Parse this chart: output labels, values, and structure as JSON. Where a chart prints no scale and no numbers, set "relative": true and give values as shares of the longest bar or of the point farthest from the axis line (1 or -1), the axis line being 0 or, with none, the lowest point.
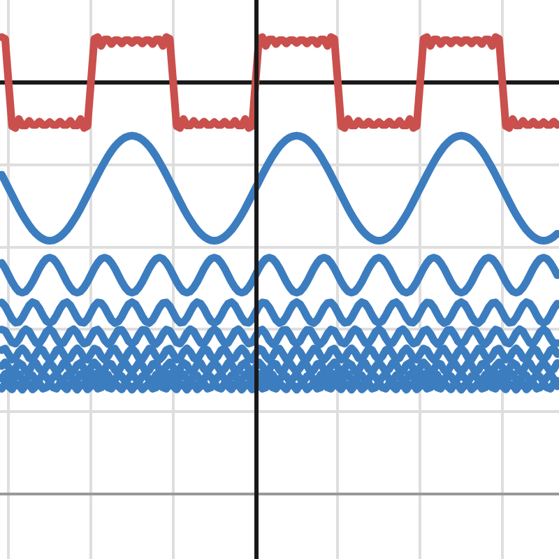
{
  "chart_data": {
    "type": "line",
    "relative": true,
    "grid": true,
    "categories": [
      null,
      null,
      null,
      null,
      null,
      null,
      null,
      null,
      null,
      null,
      null,
      null,
      null,
      null,
      null,
      null,
      null,
      null,
      null,
      null,
      null,
      null,
      null,
      null,
      null,
      null,
      null,
      null,
      null,
      null,
      null,
      null,
      null,
      null,
      null,
      null,
      null,
      null,
      null,
      null,
      null,
      null,
      null,
      null,
      null,
      null,
      null,
      null,
      null,
      null,
      null,
      null,
      null,
      null,
      null,
      null,
      null,
      null,
      null,
      null,
      null,
      null,
      null,
      null,
      null,
      null,
      null,
      null,
      null,
      null,
      null,
      null,
      null,
      null,
      null,
      null,
      null,
      null,
      null,
      null,
      null,
      null,
      null,
      null,
      null,
      null,
      null,
      null,
      null,
      null,
      null,
      null,
      null,
      null,
      null,
      null,
      null,
      null,
      null,
      null,
      null,
      null,
      null,
      null,
      null,
      null,
      null,
      null,
      null,
      null,
      null,
      null,
      null,
      null,
      null,
      null,
      null,
      null,
      null,
      null,
      null,
      null,
      null,
      null,
      null,
      null,
      null,
      null,
      null,
      null,
      null,
      null,
      null,
      null,
      null,
      null,
      null,
      null,
      null,
      null,
      null,
      null,
      null,
      null,
      null,
      null,
      null,
      null,
      null,
      null,
      null,
      null,
      null,
      null,
      null,
      null,
      null,
      null,
      null,
      null,
      null,
      null,
      null
    ],
    "series": [
      {
        "color": "#c9504d",
        "values": [
          0.148,
          0.142,
          0,
          -0.142,
          -0.148,
          -0.119,
          -0.14,
          -0.14,
          -0.125,
          -0.138,
          -0.138,
          -0.127,
          -0.138,
          -0.138,
          -0.129,
          -0.138,
          -0.138,
          -0.127,
          -0.138,
          -0.138,
          -0.125,
          -0.14,
          -0.14,
          -0.119,
          -0.148,
          -0.142,
          0,
          0.142,
          0.148,
          0.119,
          0.14,
          0.14,
          0.125,
          0.138,
          0.138,
          0.127,
          0.138,
          0.138,
          0.129,
          0.138,
          0.138,
          0.127,
          0.138,
          0.138,
          0.125,
          0.14,
          0.14,
          0.119,
          0.148,
          0.142,
          0,
          -0.142,
          -0.148,
          -0.119,
          -0.14,
          -0.14,
          -0.125,
          -0.138,
          -0.138,
          -0.127,
          -0.138,
          -0.138,
          -0.129,
          -0.138,
          -0.138,
          -0.127,
          -0.138,
          -0.138,
          -0.125,
          -0.14,
          -0.14,
          -0.119,
          -0.148,
          -0.142,
          0,
          0.142,
          0.148,
          0.119,
          0.14,
          0.14,
          0.125,
          0.138,
          0.138,
          0.127,
          0.138,
          0.138,
          0.129,
          0.138,
          0.138,
          0.127,
          0.138,
          0.138,
          0.125,
          0.14,
          0.14,
          0.119,
          0.148,
          0.142,
          0,
          -0.142,
          -0.148,
          -0.119,
          -0.14,
          -0.14,
          -0.125,
          -0.138,
          -0.138,
          -0.127,
          -0.138,
          -0.138,
          -0.129,
          -0.138,
          -0.138,
          -0.127,
          -0.138,
          -0.138,
          -0.125,
          -0.14,
          -0.14,
          -0.119,
          -0.148,
          -0.142,
          0,
          0.142,
          0.148,
          0.119,
          0.14,
          0.14,
          0.125,
          0.138,
          0.138,
          0.127,
          0.138,
          0.138,
          0.129,
          0.138,
          0.138,
          0.127,
          0.138,
          0.138,
          0.125,
          0.14,
          0.14,
          0.119,
          0.148,
          0.142,
          0,
          -0.142,
          -0.148,
          -0.119,
          -0.14,
          -0.14,
          -0.125,
          -0.138,
          -0.138,
          -0.127,
          -0.138,
          -0.138,
          -0.129,
          -0.138,
          -0.138,
          -0.127,
          -0.138
        ]
      },
      {
        "color": "#3c7dbf",
        "values": [
          -0.3,
          -0.322,
          -0.344,
          -0.366,
          -0.388,
          -0.41,
          -0.43,
          -0.448,
          -0.465,
          -0.48,
          -0.492,
          -0.502,
          -0.509,
          -0.514,
          -0.515,
          -0.514,
          -0.509,
          -0.502,
          -0.492,
          -0.48,
          -0.465,
          -0.448,
          -0.43,
          -0.41,
          -0.388,
          -0.366,
          -0.344,
          -0.322,
          -0.3,
          -0.279,
          -0.259,
          -0.24,
          -0.223,
          -0.208,
          -0.196,
          -0.186,
          -0.179,
          -0.175,
          -0.173,
          -0.175,
          -0.179,
          -0.186,
          -0.196,
          -0.208,
          -0.223,
          -0.24,
          -0.259,
          -0.279,
          -0.3,
          -0.322,
          -0.344,
          -0.366,
          -0.388,
          -0.41,
          -0.43,
          -0.448,
          -0.465,
          -0.48,
          -0.492,
          -0.502,
          -0.509,
          -0.514,
          -0.515,
          -0.514,
          -0.509,
          -0.502,
          -0.492,
          -0.48,
          -0.465,
          -0.448,
          -0.43,
          -0.41,
          -0.388,
          -0.366,
          -0.344,
          -0.322,
          -0.3,
          -0.279,
          -0.259,
          -0.24,
          -0.223,
          -0.208,
          -0.196,
          -0.186,
          -0.179,
          -0.175,
          -0.173,
          -0.175,
          -0.179,
          -0.186,
          -0.196,
          -0.208,
          -0.223,
          -0.24,
          -0.259,
          -0.279,
          -0.3,
          -0.322,
          -0.344,
          -0.366,
          -0.388,
          -0.41,
          -0.43,
          -0.448,
          -0.465,
          -0.48,
          -0.492,
          -0.502,
          -0.509,
          -0.514,
          -0.515,
          -0.514,
          -0.509,
          -0.502,
          -0.492,
          -0.48,
          -0.465,
          -0.448,
          -0.43,
          -0.41,
          -0.388,
          -0.366,
          -0.344,
          -0.322,
          -0.3,
          -0.279,
          -0.259,
          -0.24,
          -0.223,
          -0.208,
          -0.196,
          -0.186,
          -0.179,
          -0.175,
          -0.173,
          -0.175,
          -0.179,
          -0.186,
          -0.196,
          -0.208,
          -0.223,
          -0.24,
          -0.259,
          -0.279,
          -0.3,
          -0.322,
          -0.344,
          -0.366,
          -0.388,
          -0.41,
          -0.43,
          -0.448,
          -0.465,
          -0.48,
          -0.492,
          -0.502,
          -0.509,
          -0.514,
          -0.515,
          -0.514,
          -0.509,
          -0.502,
          -0.492
        ]
      },
      {
        "color": "#3c7dbf",
        "values": [
          -0.587,
          -0.605,
          -0.627,
          -0.649,
          -0.667,
          -0.68,
          -0.684,
          -0.68,
          -0.667,
          -0.649,
          -0.627,
          -0.605,
          -0.587,
          -0.574,
          -0.57,
          -0.574,
          -0.587,
          -0.605,
          -0.627,
          -0.649,
          -0.667,
          -0.68,
          -0.684,
          -0.68,
          -0.667,
          -0.649,
          -0.627,
          -0.605,
          -0.587,
          -0.574,
          -0.57,
          -0.574,
          -0.587,
          -0.605,
          -0.627,
          -0.649,
          -0.667,
          -0.68,
          -0.684,
          -0.68,
          -0.667,
          -0.649,
          -0.627,
          -0.605,
          -0.587,
          -0.574,
          -0.57,
          -0.574,
          -0.587,
          -0.605,
          -0.627,
          -0.649,
          -0.667,
          -0.68,
          -0.684,
          -0.68,
          -0.667,
          -0.649,
          -0.627,
          -0.605,
          -0.587,
          -0.574,
          -0.57,
          -0.574,
          -0.587,
          -0.605,
          -0.627,
          -0.649,
          -0.667,
          -0.68,
          -0.684,
          -0.68,
          -0.667,
          -0.649,
          -0.627,
          -0.605,
          -0.587,
          -0.574,
          -0.57,
          -0.574,
          -0.587,
          -0.605,
          -0.627,
          -0.649,
          -0.667,
          -0.68,
          -0.684,
          -0.68,
          -0.667,
          -0.649,
          -0.627,
          -0.605,
          -0.587,
          -0.574,
          -0.57,
          -0.574,
          -0.587,
          -0.605,
          -0.627,
          -0.649,
          -0.667,
          -0.68,
          -0.684,
          -0.68,
          -0.667,
          -0.649,
          -0.627,
          -0.605,
          -0.587,
          -0.574,
          -0.57,
          -0.574,
          -0.587,
          -0.605,
          -0.627,
          -0.649,
          -0.667,
          -0.68,
          -0.684,
          -0.68,
          -0.667,
          -0.649,
          -0.627,
          -0.605,
          -0.587,
          -0.574,
          -0.57,
          -0.574,
          -0.587,
          -0.605,
          -0.627,
          -0.649,
          -0.667,
          -0.68,
          -0.684,
          -0.68,
          -0.667,
          -0.649,
          -0.627,
          -0.605,
          -0.587,
          -0.574,
          -0.57,
          -0.574,
          -0.587,
          -0.605,
          -0.627,
          -0.649,
          -0.667,
          -0.68,
          -0.684,
          -0.68,
          -0.667,
          -0.649,
          -0.627,
          -0.605,
          -0.587,
          -0.574,
          -0.57,
          -0.574,
          -0.587,
          -0.605,
          -0.627
        ]
      },
      {
        "color": "#3c7dbf",
        "values": [
          -0.716,
          -0.728,
          -0.749,
          -0.77,
          -0.782,
          -0.78,
          -0.766,
          -0.745,
          -0.725,
          -0.715,
          -0.72,
          -0.736,
          -0.758,
          -0.776,
          -0.783,
          -0.776,
          -0.758,
          -0.736,
          -0.72,
          -0.715,
          -0.725,
          -0.745,
          -0.766,
          -0.78,
          -0.782,
          -0.77,
          -0.749,
          -0.728,
          -0.716,
          -0.718,
          -0.732,
          -0.753,
          -0.773,
          -0.783,
          -0.778,
          -0.762,
          -0.74,
          -0.722,
          -0.715,
          -0.722,
          -0.74,
          -0.762,
          -0.778,
          -0.783,
          -0.773,
          -0.753,
          -0.732,
          -0.718,
          -0.716,
          -0.728,
          -0.749,
          -0.77,
          -0.782,
          -0.78,
          -0.766,
          -0.745,
          -0.725,
          -0.715,
          -0.72,
          -0.736,
          -0.758,
          -0.776,
          -0.783,
          -0.776,
          -0.758,
          -0.736,
          -0.72,
          -0.715,
          -0.725,
          -0.745,
          -0.766,
          -0.78,
          -0.782,
          -0.77,
          -0.749,
          -0.728,
          -0.716,
          -0.718,
          -0.732,
          -0.753,
          -0.773,
          -0.783,
          -0.778,
          -0.762,
          -0.74,
          -0.722,
          -0.715,
          -0.722,
          -0.74,
          -0.762,
          -0.778,
          -0.783,
          -0.773,
          -0.753,
          -0.732,
          -0.718,
          -0.716,
          -0.728,
          -0.749,
          -0.77,
          -0.782,
          -0.78,
          -0.766,
          -0.745,
          -0.725,
          -0.715,
          -0.72,
          -0.736,
          -0.758,
          -0.776,
          -0.783,
          -0.776,
          -0.758,
          -0.736,
          -0.72,
          -0.715,
          -0.725,
          -0.745,
          -0.766,
          -0.78,
          -0.782,
          -0.77,
          -0.749,
          -0.728,
          -0.716,
          -0.718,
          -0.732,
          -0.753,
          -0.773,
          -0.783,
          -0.778,
          -0.762,
          -0.74,
          -0.722,
          -0.715,
          -0.722,
          -0.74,
          -0.762,
          -0.778,
          -0.783,
          -0.773,
          -0.753,
          -0.732,
          -0.718,
          -0.716,
          -0.728,
          -0.749,
          -0.77,
          -0.782,
          -0.78,
          -0.766,
          -0.745,
          -0.725,
          -0.715,
          -0.72,
          -0.736,
          -0.758,
          -0.776,
          -0.783,
          -0.776,
          -0.758,
          -0.736,
          -0.72
        ]
      },
      {
        "color": "#3c7dbf",
        "values": [
          -0.804,
          -0.808,
          -0.827,
          -0.846,
          -0.85,
          -0.836,
          -0.815,
          -0.803,
          -0.81,
          -0.83,
          -0.848,
          -0.849,
          -0.833,
          -0.812,
          -0.803,
          -0.812,
          -0.833,
          -0.849,
          -0.848,
          -0.83,
          -0.81,
          -0.803,
          -0.815,
          -0.836,
          -0.85,
          -0.846,
          -0.827,
          -0.808,
          -0.804,
          -0.818,
          -0.839,
          -0.851,
          -0.844,
          -0.824,
          -0.806,
          -0.805,
          -0.821,
          -0.842,
          -0.851,
          -0.842,
          -0.821,
          -0.805,
          -0.806,
          -0.824,
          -0.844,
          -0.851,
          -0.839,
          -0.818,
          -0.804,
          -0.808,
          -0.827,
          -0.846,
          -0.85,
          -0.836,
          -0.815,
          -0.803,
          -0.81,
          -0.83,
          -0.848,
          -0.849,
          -0.833,
          -0.812,
          -0.803,
          -0.812,
          -0.833,
          -0.849,
          -0.848,
          -0.83,
          -0.81,
          -0.803,
          -0.815,
          -0.836,
          -0.85,
          -0.846,
          -0.827,
          -0.808,
          -0.804,
          -0.818,
          -0.839,
          -0.851,
          -0.844,
          -0.824,
          -0.806,
          -0.805,
          -0.821,
          -0.842,
          -0.851,
          -0.842,
          -0.821,
          -0.805,
          -0.806,
          -0.824,
          -0.844,
          -0.851,
          -0.839,
          -0.818,
          -0.804,
          -0.808,
          -0.827,
          -0.846,
          -0.85,
          -0.836,
          -0.815,
          -0.803,
          -0.81,
          -0.83,
          -0.848,
          -0.849,
          -0.833,
          -0.812,
          -0.803,
          -0.812,
          -0.833,
          -0.849,
          -0.848,
          -0.83,
          -0.81,
          -0.803,
          -0.815,
          -0.836,
          -0.85,
          -0.846,
          -0.827,
          -0.808,
          -0.804,
          -0.818,
          -0.839,
          -0.851,
          -0.844,
          -0.824,
          -0.806,
          -0.805,
          -0.821,
          -0.842,
          -0.851,
          -0.842,
          -0.821,
          -0.805,
          -0.806,
          -0.824,
          -0.844,
          -0.851,
          -0.839,
          -0.818,
          -0.804,
          -0.808,
          -0.827,
          -0.846,
          -0.85,
          -0.836,
          -0.815,
          -0.803,
          -0.81,
          -0.83,
          -0.848,
          -0.849,
          -0.833,
          -0.812,
          -0.803,
          -0.812,
          -0.833,
          -0.849,
          -0.848
        ]
      },
      {
        "color": "#3c7dbf",
        "values": [
          -0.871,
          -0.866,
          -0.884,
          -0.902,
          -0.897,
          -0.877,
          -0.865,
          -0.877,
          -0.897,
          -0.902,
          -0.884,
          -0.866,
          -0.871,
          -0.891,
          -0.903,
          -0.891,
          -0.871,
          -0.866,
          -0.884,
          -0.902,
          -0.897,
          -0.877,
          -0.865,
          -0.877,
          -0.897,
          -0.902,
          -0.884,
          -0.866,
          -0.871,
          -0.891,
          -0.903,
          -0.891,
          -0.871,
          -0.866,
          -0.884,
          -0.902,
          -0.897,
          -0.877,
          -0.865,
          -0.877,
          -0.897,
          -0.902,
          -0.884,
          -0.866,
          -0.871,
          -0.891,
          -0.903,
          -0.891,
          -0.871,
          -0.866,
          -0.884,
          -0.902,
          -0.897,
          -0.877,
          -0.865,
          -0.877,
          -0.897,
          -0.902,
          -0.884,
          -0.866,
          -0.871,
          -0.891,
          -0.903,
          -0.891,
          -0.871,
          -0.866,
          -0.884,
          -0.902,
          -0.897,
          -0.877,
          -0.865,
          -0.877,
          -0.897,
          -0.902,
          -0.884,
          -0.866,
          -0.871,
          -0.891,
          -0.903,
          -0.891,
          -0.871,
          -0.866,
          -0.884,
          -0.902,
          -0.897,
          -0.877,
          -0.865,
          -0.877,
          -0.897,
          -0.902,
          -0.884,
          -0.866,
          -0.871,
          -0.891,
          -0.903,
          -0.891,
          -0.871,
          -0.866,
          -0.884,
          -0.902,
          -0.897,
          -0.877,
          -0.865,
          -0.877,
          -0.897,
          -0.902,
          -0.884,
          -0.866,
          -0.871,
          -0.891,
          -0.903,
          -0.891,
          -0.871,
          -0.866,
          -0.884,
          -0.902,
          -0.897,
          -0.877,
          -0.865,
          -0.877,
          -0.897,
          -0.902,
          -0.884,
          -0.866,
          -0.871,
          -0.891,
          -0.903,
          -0.891,
          -0.871,
          -0.866,
          -0.884,
          -0.902,
          -0.897,
          -0.877,
          -0.865,
          -0.877,
          -0.897,
          -0.902,
          -0.884,
          -0.866,
          -0.871,
          -0.891,
          -0.903,
          -0.891,
          -0.871,
          -0.866,
          -0.884,
          -0.902,
          -0.897,
          -0.877,
          -0.865,
          -0.877,
          -0.897,
          -0.902,
          -0.884,
          -0.866,
          -0.871,
          -0.891,
          -0.903,
          -0.891,
          -0.871,
          -0.866,
          -0.884
        ]
      },
      {
        "color": "#3c7dbf",
        "values": [
          -0.923,
          -0.911,
          -0.927,
          -0.943,
          -0.931,
          -0.912,
          -0.919,
          -0.94,
          -0.938,
          -0.917,
          -0.913,
          -0.933,
          -0.942,
          -0.925,
          -0.911,
          -0.925,
          -0.942,
          -0.933,
          -0.913,
          -0.917,
          -0.938,
          -0.94,
          -0.919,
          -0.912,
          -0.931,
          -0.943,
          -0.927,
          -0.911,
          -0.923,
          -0.942,
          -0.935,
          -0.914,
          -0.916,
          -0.937,
          -0.941,
          -0.921,
          -0.912,
          -0.929,
          -0.943,
          -0.929,
          -0.912,
          -0.921,
          -0.941,
          -0.937,
          -0.916,
          -0.914,
          -0.935,
          -0.942,
          -0.923,
          -0.911,
          -0.927,
          -0.943,
          -0.931,
          -0.912,
          -0.919,
          -0.94,
          -0.938,
          -0.917,
          -0.913,
          -0.933,
          -0.942,
          -0.925,
          -0.911,
          -0.925,
          -0.942,
          -0.933,
          -0.913,
          -0.917,
          -0.938,
          -0.94,
          -0.919,
          -0.912,
          -0.931,
          -0.943,
          -0.927,
          -0.911,
          -0.923,
          -0.942,
          -0.935,
          -0.914,
          -0.916,
          -0.937,
          -0.941,
          -0.921,
          -0.912,
          -0.929,
          -0.943,
          -0.929,
          -0.912,
          -0.921,
          -0.941,
          -0.937,
          -0.916,
          -0.914,
          -0.935,
          -0.942,
          -0.923,
          -0.911,
          -0.927,
          -0.943,
          -0.931,
          -0.912,
          -0.919,
          -0.94,
          -0.938,
          -0.917,
          -0.913,
          -0.933,
          -0.942,
          -0.925,
          -0.911,
          -0.925,
          -0.942,
          -0.933,
          -0.913,
          -0.917,
          -0.938,
          -0.94,
          -0.919,
          -0.912,
          -0.931,
          -0.943,
          -0.927,
          -0.911,
          -0.923,
          -0.942,
          -0.935,
          -0.914,
          -0.916,
          -0.937,
          -0.941,
          -0.921,
          -0.912,
          -0.929,
          -0.943,
          -0.929,
          -0.912,
          -0.921,
          -0.941,
          -0.937,
          -0.916,
          -0.914,
          -0.935,
          -0.942,
          -0.923,
          -0.911,
          -0.927,
          -0.943,
          -0.931,
          -0.912,
          -0.919,
          -0.94,
          -0.938,
          -0.917,
          -0.913,
          -0.933,
          -0.942,
          -0.925,
          -0.911,
          -0.925,
          -0.942,
          -0.933,
          -0.913
        ]
      },
      {
        "color": "#3c7dbf",
        "values": [
          -0.964,
          -0.948,
          -0.961,
          -0.974,
          -0.958,
          -0.949,
          -0.967,
          -0.971,
          -0.952,
          -0.953,
          -0.972,
          -0.966,
          -0.948,
          -0.959,
          -0.974,
          -0.959,
          -0.948,
          -0.966,
          -0.972,
          -0.953,
          -0.952,
          -0.971,
          -0.967,
          -0.949,
          -0.958,
          -0.974,
          -0.961,
          -0.948,
          -0.964,
          -0.973,
          -0.955,
          -0.951,
          -0.97,
          -0.969,
          -0.95,
          -0.956,
          -0.974,
          -0.963,
          -0.948,
          -0.963,
          -0.974,
          -0.956,
          -0.95,
          -0.969,
          -0.97,
          -0.951,
          -0.955,
          -0.973,
          -0.964,
          -0.948,
          -0.961,
          -0.974,
          -0.958,
          -0.949,
          -0.967,
          -0.971,
          -0.952,
          -0.953,
          -0.972,
          -0.966,
          -0.948,
          -0.959,
          -0.974,
          -0.959,
          -0.948,
          -0.966,
          -0.972,
          -0.953,
          -0.952,
          -0.971,
          -0.967,
          -0.949,
          -0.958,
          -0.974,
          -0.961,
          -0.948,
          -0.964,
          -0.973,
          -0.955,
          -0.951,
          -0.97,
          -0.969,
          -0.95,
          -0.956,
          -0.974,
          -0.963,
          -0.948,
          -0.963,
          -0.974,
          -0.956,
          -0.95,
          -0.969,
          -0.97,
          -0.951,
          -0.955,
          -0.973,
          -0.964,
          -0.948,
          -0.961,
          -0.974,
          -0.958,
          -0.949,
          -0.967,
          -0.971,
          -0.952,
          -0.953,
          -0.972,
          -0.966,
          -0.948,
          -0.959,
          -0.974,
          -0.959,
          -0.948,
          -0.966,
          -0.972,
          -0.953,
          -0.952,
          -0.971,
          -0.967,
          -0.949,
          -0.958,
          -0.974,
          -0.961,
          -0.948,
          -0.964,
          -0.973,
          -0.955,
          -0.951,
          -0.97,
          -0.969,
          -0.95,
          -0.956,
          -0.974,
          -0.963,
          -0.948,
          -0.963,
          -0.974,
          -0.956,
          -0.95,
          -0.969,
          -0.97,
          -0.951,
          -0.955,
          -0.973,
          -0.964,
          -0.948,
          -0.961,
          -0.974,
          -0.958,
          -0.949,
          -0.967,
          -0.971,
          -0.952,
          -0.953,
          -0.972,
          -0.966,
          -0.948,
          -0.959,
          -0.974,
          -0.959,
          -0.948,
          -0.966,
          -0.972
        ]
      },
      {
        "color": "#3c7dbf",
        "values": [
          -0.997,
          -0.979,
          -0.989,
          -0.999,
          -0.981,
          -0.985,
          -1,
          -0.985,
          -0.981,
          -0.999,
          -0.989,
          -0.979,
          -0.997,
          -0.993,
          -0.978,
          -0.993,
          -0.997,
          -0.979,
          -0.989,
          -0.999,
          -0.981,
          -0.985,
          -1,
          -0.985,
          -0.981,
          -0.999,
          -0.989,
          -0.979,
          -0.997,
          -0.993,
          -0.978,
          -0.993,
          -0.997,
          -0.979,
          -0.989,
          -0.999,
          -0.981,
          -0.985,
          -1,
          -0.985,
          -0.981,
          -0.999,
          -0.989,
          -0.979,
          -0.997,
          -0.993,
          -0.978,
          -0.993,
          -0.997,
          -0.979,
          -0.989,
          -0.999,
          -0.981,
          -0.985,
          -1,
          -0.985,
          -0.981,
          -0.999,
          -0.989,
          -0.979,
          -0.997,
          -0.993,
          -0.978,
          -0.993,
          -0.997,
          -0.979,
          -0.989,
          -0.999,
          -0.981,
          -0.985,
          -1,
          -0.985,
          -0.981,
          -0.999,
          -0.989,
          -0.979,
          -0.997,
          -0.993,
          -0.978,
          -0.993,
          -0.997,
          -0.979,
          -0.989,
          -0.999,
          -0.981,
          -0.985,
          -1,
          -0.985,
          -0.981,
          -0.999,
          -0.989,
          -0.979,
          -0.997,
          -0.993,
          -0.978,
          -0.993,
          -0.997,
          -0.979,
          -0.989,
          -0.999,
          -0.981,
          -0.985,
          -1,
          -0.985,
          -0.981,
          -0.999,
          -0.989,
          -0.979,
          -0.997,
          -0.993,
          -0.978,
          -0.993,
          -0.997,
          -0.979,
          -0.989,
          -0.999,
          -0.981,
          -0.985,
          -1,
          -0.985,
          -0.981,
          -0.999,
          -0.989,
          -0.979,
          -0.997,
          -0.993,
          -0.978,
          -0.993,
          -0.997,
          -0.979,
          -0.989,
          -0.999,
          -0.981,
          -0.985,
          -1,
          -0.985,
          -0.981,
          -0.999,
          -0.989,
          -0.979,
          -0.997,
          -0.993,
          -0.978,
          -0.993,
          -0.997,
          -0.979,
          -0.989,
          -0.999,
          -0.981,
          -0.985,
          -1,
          -0.985,
          -0.981,
          -0.999,
          -0.989,
          -0.979,
          -0.997,
          -0.993,
          -0.978,
          -0.993,
          -0.997,
          -0.979,
          -0.989
        ]
      }
    ]
  }
}
